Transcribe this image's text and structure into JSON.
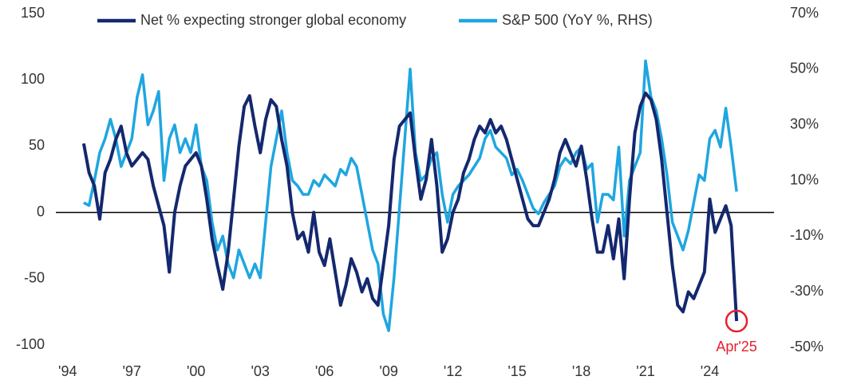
{
  "chart_data": {
    "type": "line",
    "series": [
      {
        "name": "Net % expecting stronger global economy",
        "color": "#14286e",
        "axis": "y",
        "values": [
          52,
          30,
          20,
          -5,
          30,
          40,
          55,
          65,
          45,
          35,
          40,
          45,
          40,
          20,
          5,
          -10,
          -45,
          0,
          20,
          35,
          40,
          45,
          35,
          10,
          -20,
          -40,
          -58,
          -30,
          10,
          50,
          80,
          88,
          65,
          45,
          70,
          85,
          80,
          55,
          35,
          0,
          -20,
          -15,
          -30,
          0,
          -30,
          -40,
          -20,
          -45,
          -70,
          -55,
          -35,
          -45,
          -60,
          -50,
          -65,
          -70,
          -40,
          -10,
          40,
          65,
          70,
          75,
          40,
          10,
          25,
          55,
          20,
          -30,
          -20,
          0,
          10,
          30,
          40,
          55,
          65,
          60,
          70,
          60,
          65,
          55,
          40,
          25,
          10,
          -5,
          -10,
          -10,
          0,
          10,
          25,
          45,
          55,
          45,
          35,
          50,
          25,
          -5,
          -30,
          -30,
          -10,
          -35,
          -5,
          -50,
          10,
          60,
          80,
          90,
          85,
          70,
          40,
          0,
          -40,
          -70,
          -75,
          -60,
          -65,
          -55,
          -45,
          10,
          -15,
          -5,
          5,
          -10,
          -82
        ]
      },
      {
        "name": "S&P 500 (YoY %, RHS)",
        "color": "#1fa6e0",
        "axis": "y2",
        "values": [
          2,
          1,
          10,
          20,
          25,
          32,
          25,
          15,
          20,
          25,
          40,
          48,
          30,
          35,
          42,
          10,
          25,
          30,
          20,
          25,
          20,
          30,
          15,
          10,
          -5,
          -15,
          -10,
          -20,
          -25,
          -15,
          -20,
          -25,
          -20,
          -25,
          -5,
          15,
          25,
          35,
          20,
          10,
          8,
          5,
          5,
          10,
          8,
          12,
          10,
          8,
          14,
          12,
          18,
          15,
          5,
          -5,
          -15,
          -20,
          -38,
          -44,
          -25,
          0,
          25,
          50,
          20,
          10,
          12,
          18,
          20,
          5,
          -5,
          5,
          8,
          10,
          12,
          15,
          18,
          25,
          28,
          22,
          20,
          18,
          12,
          14,
          10,
          5,
          0,
          -2,
          2,
          5,
          8,
          15,
          18,
          16,
          20,
          22,
          14,
          16,
          -5,
          5,
          5,
          3,
          22,
          -10,
          10,
          15,
          20,
          53,
          40,
          35,
          25,
          12,
          -5,
          -10,
          -15,
          -8,
          2,
          12,
          10,
          25,
          28,
          22,
          36,
          22,
          6
        ]
      }
    ],
    "x": [
      1994.75,
      1995,
      1995.25,
      1995.5,
      1995.75,
      1996,
      1996.25,
      1996.5,
      1996.75,
      1997,
      1997.25,
      1997.5,
      1997.75,
      1998,
      1998.25,
      1998.5,
      1998.75,
      1999,
      1999.25,
      1999.5,
      1999.75,
      2000,
      2000.25,
      2000.5,
      2000.75,
      2001,
      2001.25,
      2001.5,
      2001.75,
      2002,
      2002.25,
      2002.5,
      2002.75,
      2003,
      2003.25,
      2003.5,
      2003.75,
      2004,
      2004.25,
      2004.5,
      2004.75,
      2005,
      2005.25,
      2005.5,
      2005.75,
      2006,
      2006.25,
      2006.5,
      2006.75,
      2007,
      2007.25,
      2007.5,
      2007.75,
      2008,
      2008.25,
      2008.5,
      2008.75,
      2009,
      2009.25,
      2009.5,
      2009.75,
      2010,
      2010.25,
      2010.5,
      2010.75,
      2011,
      2011.25,
      2011.5,
      2011.75,
      2012,
      2012.25,
      2012.5,
      2012.75,
      2013,
      2013.25,
      2013.5,
      2013.75,
      2014,
      2014.25,
      2014.5,
      2014.75,
      2015,
      2015.25,
      2015.5,
      2015.75,
      2016,
      2016.25,
      2016.5,
      2016.75,
      2017,
      2017.25,
      2017.5,
      2017.75,
      2018,
      2018.25,
      2018.5,
      2018.75,
      2019,
      2019.25,
      2019.5,
      2019.75,
      2020,
      2020.25,
      2020.5,
      2020.75,
      2021,
      2021.25,
      2021.5,
      2021.75,
      2022,
      2022.25,
      2022.5,
      2022.75,
      2023,
      2023.25,
      2023.5,
      2023.75,
      2024,
      2024.25,
      2024.5,
      2024.75,
      2025,
      2025.25
    ],
    "xlim": [
      1993.45,
      2027
    ],
    "xticks": [
      {
        "value": 1994,
        "label": "'94"
      },
      {
        "value": 1997,
        "label": "'97"
      },
      {
        "value": 2000,
        "label": "'00"
      },
      {
        "value": 2003,
        "label": "'03"
      },
      {
        "value": 2006,
        "label": "'06"
      },
      {
        "value": 2009,
        "label": "'09"
      },
      {
        "value": 2012,
        "label": "'12"
      },
      {
        "value": 2015,
        "label": "'15"
      },
      {
        "value": 2018,
        "label": "'18"
      },
      {
        "value": 2021,
        "label": "'21"
      },
      {
        "value": 2024,
        "label": "'24"
      }
    ],
    "ylim": [
      -100,
      150
    ],
    "yticks": [
      -100,
      -50,
      0,
      50,
      100,
      150
    ],
    "y2lim": [
      -50,
      70
    ],
    "y2ticks": [
      {
        "value": -50,
        "label": "-50%"
      },
      {
        "value": -30,
        "label": "-30%"
      },
      {
        "value": -10,
        "label": "-10%"
      },
      {
        "value": 10,
        "label": "10%"
      },
      {
        "value": 30,
        "label": "30%"
      },
      {
        "value": 50,
        "label": "50%"
      },
      {
        "value": 70,
        "label": "70%"
      }
    ],
    "annotation": "Apr'25",
    "annotation_color": "#e8202a"
  }
}
